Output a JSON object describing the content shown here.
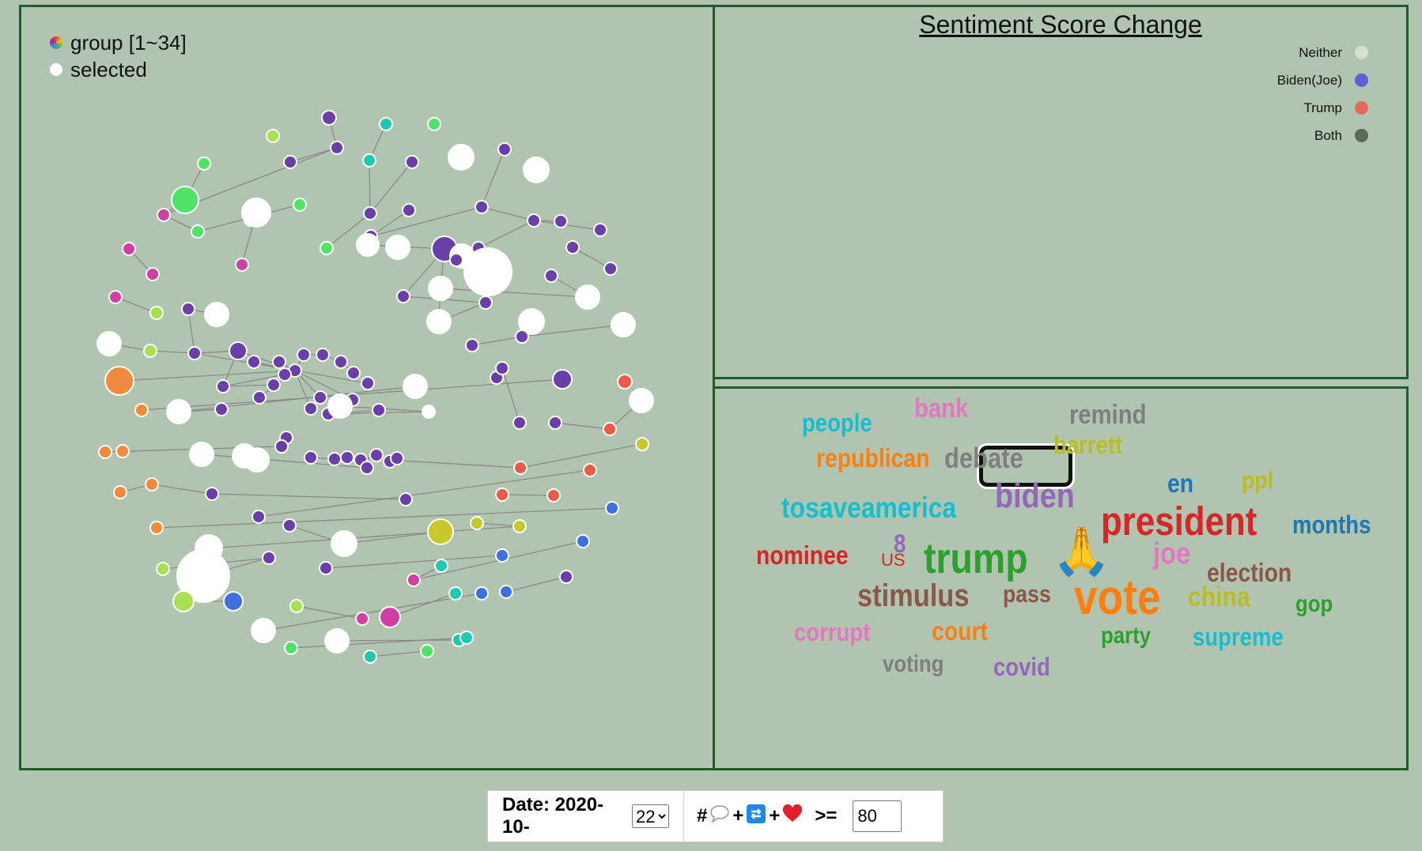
{
  "graph": {
    "legend": {
      "group_label": "group [1~34]",
      "selected_label": "selected"
    },
    "colors": {
      "edge": "#8a8a8a",
      "white": "#ffffff"
    }
  },
  "sentiment": {
    "title": "Sentiment Score Change",
    "legend": [
      {
        "label": "Neither",
        "color": "#d5e0d3"
      },
      {
        "label": "Biden(Joe)",
        "color": "#5b62d9"
      },
      {
        "label": "Trump",
        "color": "#e46a5d"
      },
      {
        "label": "Both",
        "color": "#5c6a5b"
      }
    ]
  },
  "wordcloud": {
    "words": [
      {
        "text": "bank",
        "color": "#e377c2"
      },
      {
        "text": "remind",
        "color": "#7f7f7f"
      },
      {
        "text": "people",
        "color": "#17becf"
      },
      {
        "text": "republican",
        "color": "#ff7f0e"
      },
      {
        "text": "debate",
        "color": "#7f7f7f",
        "selected": true
      },
      {
        "text": "barrett",
        "color": "#bcbd22"
      },
      {
        "text": "en",
        "color": "#1f77b4"
      },
      {
        "text": "ppl",
        "color": "#bcbd22"
      },
      {
        "text": "tosaveamerica",
        "color": "#17becf"
      },
      {
        "text": "biden",
        "color": "#9467bd"
      },
      {
        "text": "president",
        "color": "#d62728"
      },
      {
        "text": "months",
        "color": "#1f77b4"
      },
      {
        "text": "8",
        "color": "#9467bd"
      },
      {
        "text": "nominee",
        "color": "#d62728"
      },
      {
        "text": "US",
        "color": "#d62728"
      },
      {
        "text": "trump",
        "color": "#2ca02c"
      },
      {
        "text": "🙏",
        "color": "#f4b400"
      },
      {
        "text": "joe",
        "color": "#e377c2"
      },
      {
        "text": "election",
        "color": "#8c564b"
      },
      {
        "text": "stimulus",
        "color": "#8c564b"
      },
      {
        "text": "pass",
        "color": "#8c564b"
      },
      {
        "text": "vote",
        "color": "#ff7f0e"
      },
      {
        "text": "china",
        "color": "#bcbd22"
      },
      {
        "text": "gop",
        "color": "#2ca02c"
      },
      {
        "text": "corrupt",
        "color": "#e377c2"
      },
      {
        "text": "court",
        "color": "#ff7f0e"
      },
      {
        "text": "party",
        "color": "#2ca02c"
      },
      {
        "text": "supreme",
        "color": "#17becf"
      },
      {
        "text": "voting",
        "color": "#7f7f7f"
      },
      {
        "text": "covid",
        "color": "#9467bd"
      }
    ]
  },
  "controls": {
    "date_label": "Date: 2020-10-",
    "day_value": "22",
    "day_options": [
      "22"
    ],
    "filter_hash": "#",
    "filter_plus": "+",
    "filter_op": ">=",
    "threshold_value": "80",
    "icons": [
      "comment-icon",
      "retweet-icon",
      "heart-icon"
    ]
  }
}
